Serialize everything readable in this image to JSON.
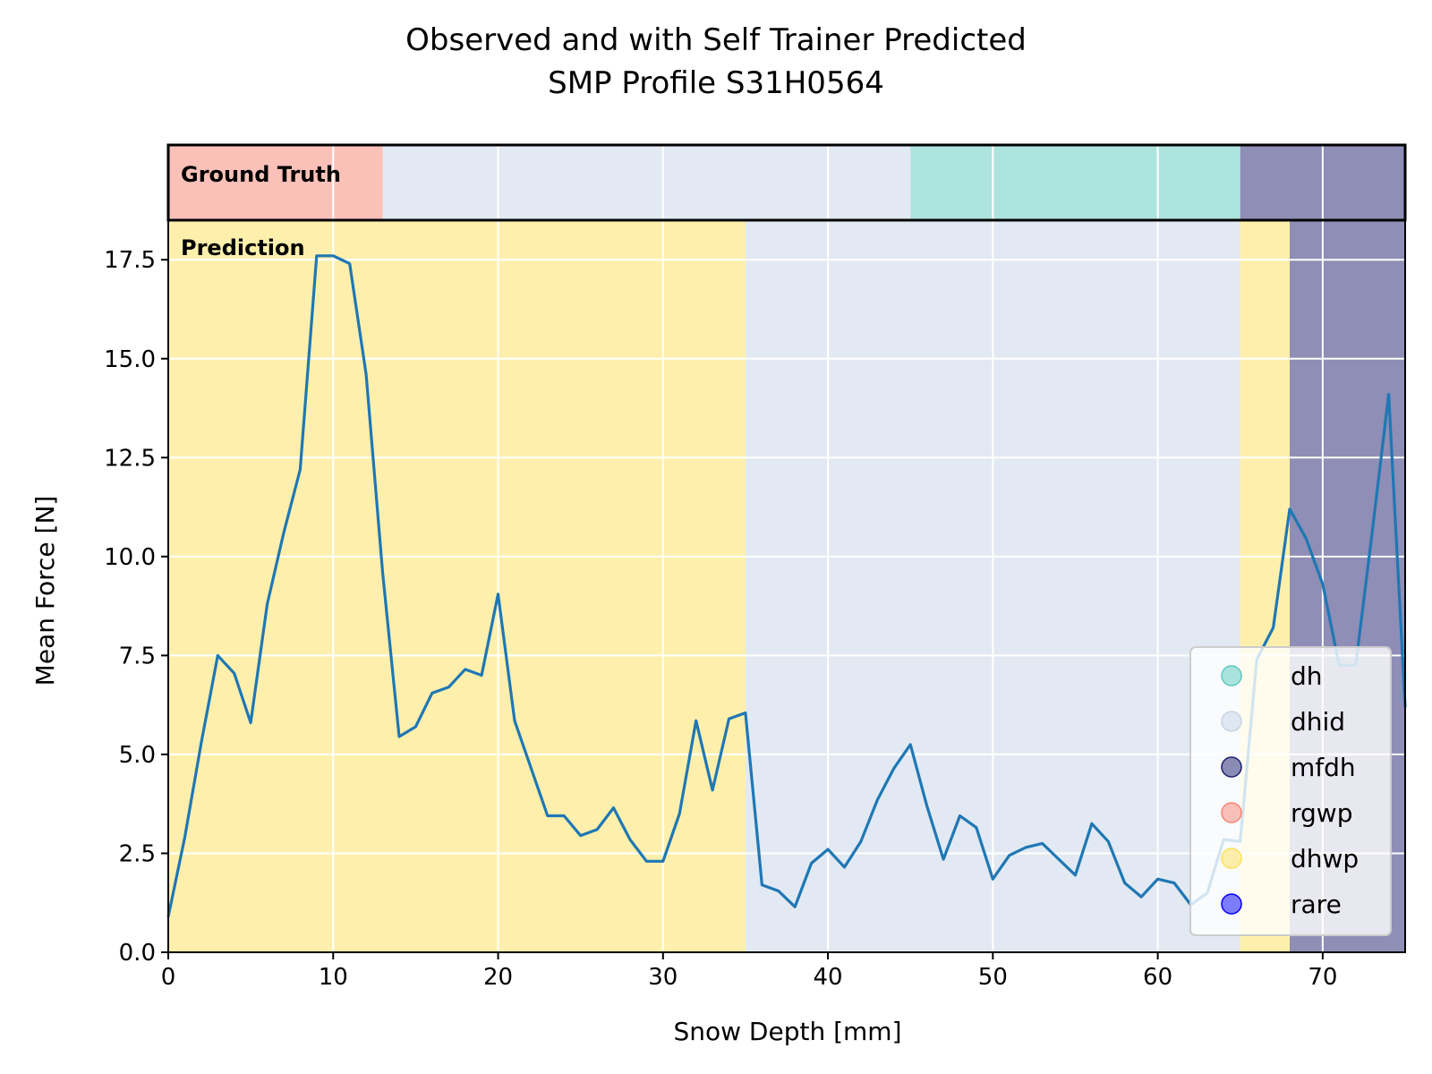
{
  "chart_data": {
    "type": "line",
    "title": [
      "Observed and with Self Trainer Predicted",
      "SMP Profile S31H0564"
    ],
    "xlabel": "Snow Depth [mm]",
    "ylabel": "Mean Force [N]",
    "xlim": [
      0,
      75
    ],
    "ylim": [
      0,
      18.5
    ],
    "x_ticks": [
      0,
      10,
      20,
      30,
      40,
      50,
      60,
      70
    ],
    "x_tick_labels": [
      "0",
      "10",
      "20",
      "30",
      "40",
      "50",
      "60",
      "70"
    ],
    "y_ticks": [
      0,
      2.5,
      5,
      7.5,
      10,
      12.5,
      15,
      17.5
    ],
    "y_tick_labels": [
      "0.0",
      "2.5",
      "5.0",
      "7.5",
      "10.0",
      "12.5",
      "15.0",
      "17.5"
    ],
    "grid": true,
    "legend_position": "lower-right",
    "line_color": "#1f77b4",
    "ground_truth_label": "Ground Truth",
    "prediction_label": "Prediction",
    "classes": [
      {
        "name": "dh",
        "color": "#5cc9bd"
      },
      {
        "name": "dhid",
        "color": "#c6d3e6"
      },
      {
        "name": "mfdh",
        "color": "#1e1e6e"
      },
      {
        "name": "rgwp",
        "color": "#f78474"
      },
      {
        "name": "dhwp",
        "color": "#fde15a"
      },
      {
        "name": "rare",
        "color": "#0000ff"
      }
    ],
    "ground_truth_segments": [
      {
        "start": 0,
        "end": 13,
        "class": "rgwp"
      },
      {
        "start": 13,
        "end": 45,
        "class": "dhid"
      },
      {
        "start": 45,
        "end": 65,
        "class": "dh"
      },
      {
        "start": 65,
        "end": 75,
        "class": "mfdh"
      }
    ],
    "prediction_segments": [
      {
        "start": 0,
        "end": 35,
        "class": "dhwp"
      },
      {
        "start": 35,
        "end": 65,
        "class": "dhid"
      },
      {
        "start": 65,
        "end": 68,
        "class": "dhwp"
      },
      {
        "start": 68,
        "end": 75,
        "class": "mfdh"
      }
    ],
    "series": [
      {
        "x": [
          0,
          1,
          2,
          3,
          4,
          5,
          6,
          7,
          8,
          9,
          10,
          11,
          12,
          13,
          14,
          15,
          16,
          17,
          18,
          19,
          20,
          21,
          22,
          23,
          24,
          25,
          26,
          27,
          28,
          29,
          30,
          31,
          32,
          33,
          34,
          35,
          36,
          37,
          38,
          39,
          40,
          41,
          42,
          43,
          44,
          45,
          46,
          47,
          48,
          49,
          50,
          51,
          52,
          53,
          54,
          55,
          56,
          57,
          58,
          59,
          60,
          61,
          62,
          63,
          64,
          65,
          66,
          67,
          68,
          69,
          70,
          71,
          72,
          73,
          74,
          75
        ],
        "values": [
          0.9,
          2.9,
          5.3,
          7.5,
          7.05,
          5.8,
          8.8,
          10.6,
          12.2,
          17.6,
          17.6,
          17.4,
          14.6,
          9.6,
          5.45,
          5.7,
          6.55,
          6.7,
          7.15,
          7.0,
          9.05,
          5.85,
          4.65,
          3.45,
          3.45,
          2.95,
          3.1,
          3.65,
          2.85,
          2.3,
          2.3,
          3.5,
          5.85,
          4.1,
          5.9,
          6.05,
          1.7,
          1.55,
          1.15,
          2.25,
          2.6,
          2.15,
          2.8,
          3.85,
          4.65,
          5.25,
          3.7,
          2.35,
          3.45,
          3.15,
          1.85,
          2.45,
          2.65,
          2.75,
          2.35,
          1.95,
          3.25,
          2.8,
          1.75,
          1.4,
          1.85,
          1.75,
          1.2,
          1.5,
          2.85,
          2.8,
          7.4,
          8.2,
          11.2,
          10.45,
          9.3,
          7.25,
          7.25,
          10.6,
          14.1,
          6.2
        ]
      }
    ]
  }
}
